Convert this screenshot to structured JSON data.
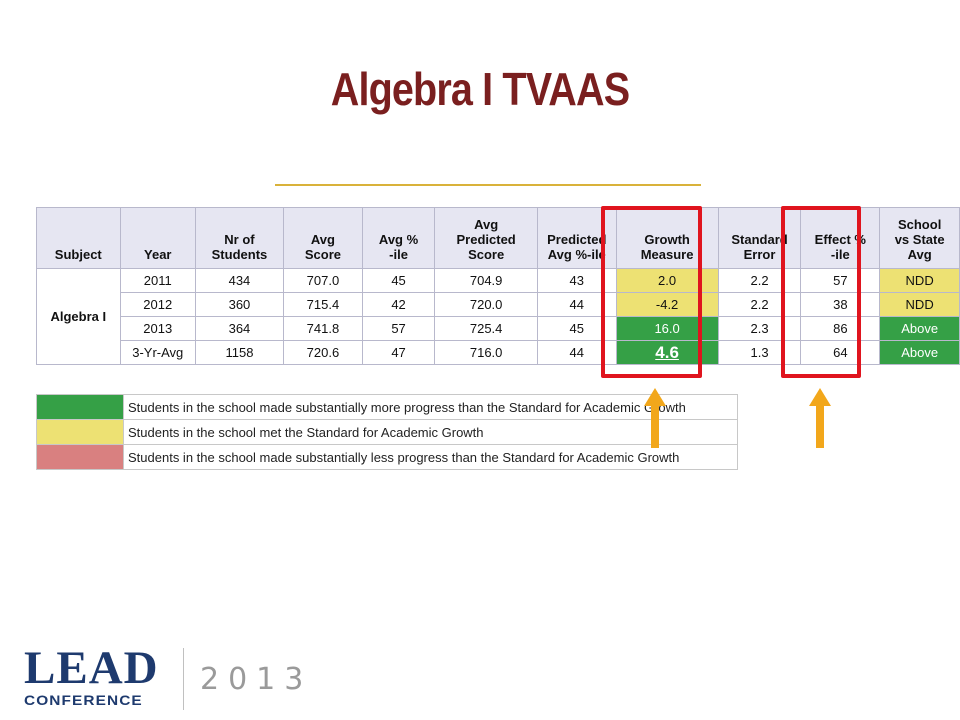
{
  "slide": {
    "title": "Algebra I TVAAS"
  },
  "table": {
    "headers": [
      [
        "Subject"
      ],
      [
        "Year"
      ],
      [
        "Nr of",
        "Students"
      ],
      [
        "Avg",
        "Score"
      ],
      [
        "Avg %",
        "-ile"
      ],
      [
        "Avg",
        "Predicted",
        "Score"
      ],
      [
        "Predicted",
        "Avg %-ile"
      ],
      [
        "Growth",
        "Measure"
      ],
      [
        "Standard",
        "Error"
      ],
      [
        "Effect %",
        "-ile"
      ],
      [
        "School",
        "vs State",
        "Avg"
      ]
    ],
    "subject": "Algebra I",
    "rows": [
      {
        "year": "2011",
        "students": "434",
        "avg_score": "707.0",
        "avg_pctile": "45",
        "avg_pred_score": "704.9",
        "pred_pctile": "43",
        "growth": "2.0",
        "growth_color": "yellow",
        "std_err": "2.2",
        "effect": "57",
        "vs_state": "NDD",
        "vs_color": "yellow"
      },
      {
        "year": "2012",
        "students": "360",
        "avg_score": "715.4",
        "avg_pctile": "42",
        "avg_pred_score": "720.0",
        "pred_pctile": "44",
        "growth": "-4.2",
        "growth_color": "yellow",
        "std_err": "2.2",
        "effect": "38",
        "vs_state": "NDD",
        "vs_color": "yellow"
      },
      {
        "year": "2013",
        "students": "364",
        "avg_score": "741.8",
        "avg_pctile": "57",
        "avg_pred_score": "725.4",
        "pred_pctile": "45",
        "growth": "16.0",
        "growth_color": "green",
        "std_err": "2.3",
        "effect": "86",
        "vs_state": "Above",
        "vs_color": "green"
      },
      {
        "year": "3-Yr-Avg",
        "students": "1158",
        "avg_score": "720.6",
        "avg_pctile": "47",
        "avg_pred_score": "716.0",
        "pred_pctile": "44",
        "growth": "4.6",
        "growth_color": "green",
        "std_err": "1.3",
        "effect": "64",
        "vs_state": "Above",
        "vs_color": "green"
      }
    ]
  },
  "legend": [
    {
      "color": "#35a046",
      "text": "Students in the school made substantially more progress than the Standard for Academic Growth"
    },
    {
      "color": "#ede173",
      "text": "Students in the school met the Standard for Academic Growth"
    },
    {
      "color": "#d98080",
      "text": "Students in the school made substantially less progress than the Standard for Academic Growth"
    }
  ],
  "colors": {
    "highlight_box": "#e0141e",
    "arrow": "#f2a71b",
    "title": "#7a1f1f",
    "logo": "#1e3a6e"
  },
  "footer": {
    "logo_main": "LEAD",
    "logo_sub": "CONFERENCE",
    "year": "2013"
  }
}
